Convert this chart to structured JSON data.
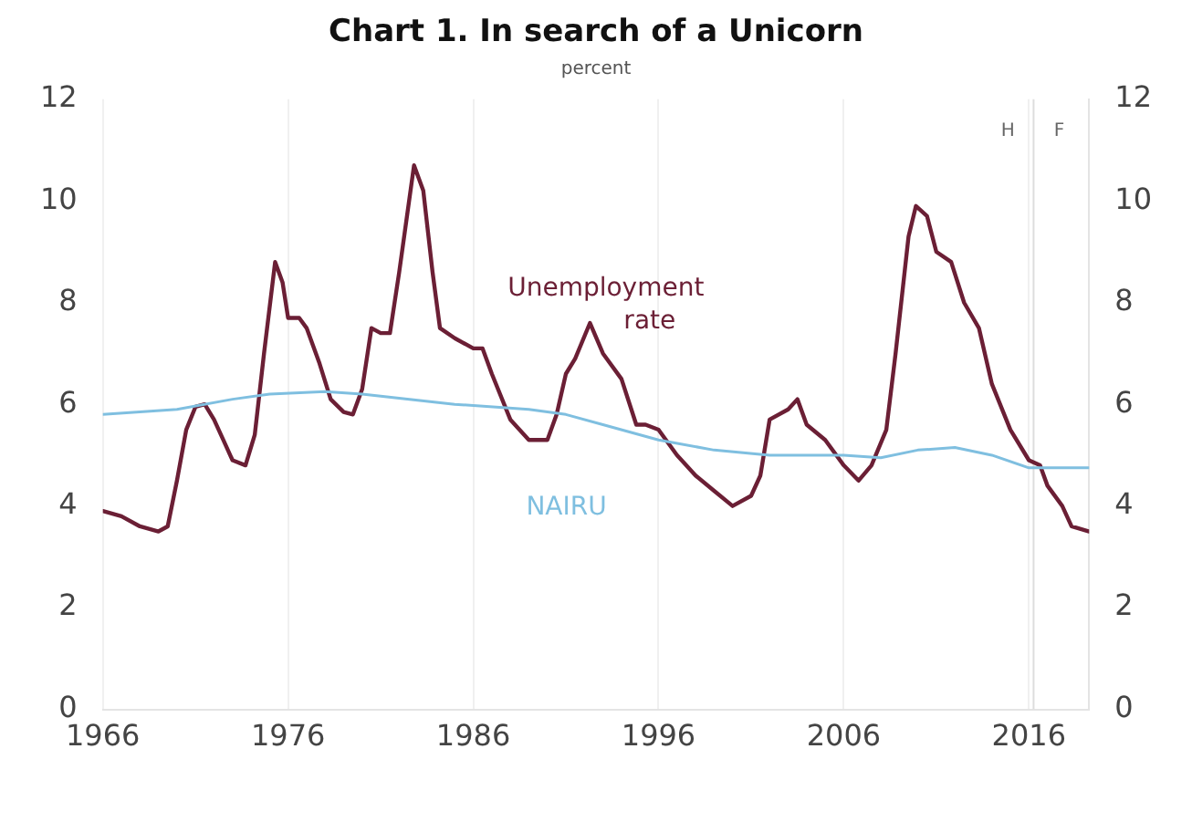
{
  "chart_data": {
    "type": "line",
    "title": "Chart 1. In search of a Unicorn",
    "ylabel": "percent",
    "xlim": [
      1966,
      2019.25
    ],
    "xticks": [
      1966,
      1976,
      1986,
      1996,
      2006,
      2016
    ],
    "ylim": [
      0,
      12
    ],
    "yticks": [
      0,
      2,
      4,
      6,
      8,
      10,
      12
    ],
    "y2lim": [
      0,
      12
    ],
    "y2ticks": [
      0,
      2,
      4,
      6,
      8,
      10,
      12
    ],
    "grid": "x",
    "legend": false,
    "marker": "none",
    "line_style": "solid",
    "series": [
      {
        "name": "NAIRU",
        "color": "#7fbfe0",
        "x": [
          1966,
          1970,
          1973,
          1975,
          1978,
          1980,
          1985,
          1989,
          1991,
          1993,
          1996,
          1999,
          2002,
          2006,
          2008,
          2010,
          2012,
          2014,
          2016,
          2019.25
        ],
        "values": [
          5.8,
          5.9,
          6.1,
          6.2,
          6.25,
          6.2,
          6.0,
          5.9,
          5.8,
          5.6,
          5.3,
          5.1,
          5.0,
          5.0,
          4.95,
          5.1,
          5.15,
          5.0,
          4.75,
          4.75
        ]
      },
      {
        "name": "Unemployment rate",
        "x": [
          1966,
          1967,
          1968,
          1969,
          1969.5,
          1970,
          1970.5,
          1971,
          1971.5,
          1972,
          1972.5,
          1973,
          1973.7,
          1974.2,
          1974.7,
          1975.3,
          1975.7,
          1976,
          1976.6,
          1977,
          1977.7,
          1978.3,
          1979,
          1979.5,
          1980,
          1980.5,
          1981,
          1981.5,
          1982,
          1982.8,
          1983.3,
          1983.8,
          1984.2,
          1985,
          1986,
          1986.5,
          1987,
          1988,
          1989,
          1990,
          1990.5,
          1991,
          1991.5,
          1992.3,
          1993,
          1994,
          1994.8,
          1995.3,
          1996,
          1997,
          1998,
          1999,
          2000,
          2001,
          2001.5,
          2002,
          2003,
          2003.5,
          2004,
          2005,
          2006,
          2006.8,
          2007.5,
          2008.3,
          2008.8,
          2009.5,
          2009.9,
          2010.5,
          2011,
          2011.8,
          2012.5,
          2013.3,
          2014,
          2015,
          2016,
          2016.6,
          2017,
          2017.8,
          2018.3,
          2019.25
        ],
        "values": [
          3.9,
          3.8,
          3.6,
          3.5,
          3.6,
          4.5,
          5.5,
          5.95,
          6.0,
          5.7,
          5.3,
          4.9,
          4.8,
          5.4,
          7.0,
          8.8,
          8.4,
          7.7,
          7.7,
          7.5,
          6.8,
          6.1,
          5.85,
          5.8,
          6.3,
          7.5,
          7.4,
          7.4,
          8.6,
          10.7,
          10.2,
          8.6,
          7.5,
          7.3,
          7.1,
          7.1,
          6.6,
          5.7,
          5.3,
          5.3,
          5.8,
          6.6,
          6.9,
          7.6,
          7.0,
          6.5,
          5.6,
          5.6,
          5.5,
          5.0,
          4.6,
          4.3,
          4.0,
          4.2,
          4.6,
          5.7,
          5.9,
          6.1,
          5.6,
          5.3,
          4.8,
          4.5,
          4.8,
          5.5,
          7.0,
          9.3,
          9.9,
          9.7,
          9.0,
          8.8,
          8.0,
          7.5,
          6.4,
          5.5,
          4.9,
          4.8,
          4.4,
          4.0,
          3.6,
          3.5
        ],
        "color": "#6b1f35"
      }
    ],
    "ref_lines": [
      {
        "axis": "x",
        "value": 2016.25,
        "color": "#dddddd"
      }
    ],
    "annotations": [
      "H",
      "F"
    ]
  }
}
